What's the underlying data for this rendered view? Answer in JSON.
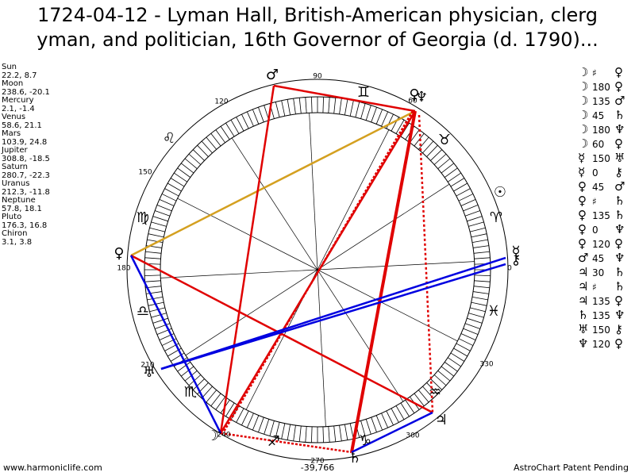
{
  "header": {
    "line1": "1724-04-12 - Lyman Hall, British-American physician, clerg",
    "line2": "yman, and politician, 16th Governor of Georgia (d. 1790)..."
  },
  "positions": [
    {
      "name": "Sun",
      "value": "22.2, 8.7"
    },
    {
      "name": "Moon",
      "value": "238.6, -20.1"
    },
    {
      "name": "Mercury",
      "value": "2.1, -1.4"
    },
    {
      "name": "Venus",
      "value": "58.6, 21.1"
    },
    {
      "name": "Mars",
      "value": "103.9, 24.8"
    },
    {
      "name": "Jupiter",
      "value": "308.8, -18.5"
    },
    {
      "name": "Saturn",
      "value": "280.7, -22.3"
    },
    {
      "name": "Uranus",
      "value": "212.3, -11.8"
    },
    {
      "name": "Neptune",
      "value": "57.8, 18.1"
    },
    {
      "name": "Pluto",
      "value": "176.3, 16.8"
    },
    {
      "name": "Chiron",
      "value": "3.1, 3.8"
    }
  ],
  "aspects": [
    [
      "☽",
      "♯",
      "♀"
    ],
    [
      "☽",
      "180",
      "♀"
    ],
    [
      "☽",
      "135",
      "♂"
    ],
    [
      "☽",
      "45",
      "♄"
    ],
    [
      "☽",
      "180",
      "♆"
    ],
    [
      "☽",
      "60",
      "♀"
    ],
    [
      "☿",
      "150",
      "♅"
    ],
    [
      "☿",
      "0",
      "⚷"
    ],
    [
      "♀",
      "45",
      "♂"
    ],
    [
      "♀",
      "♯",
      "♄"
    ],
    [
      "♀",
      "135",
      "♄"
    ],
    [
      "♀",
      "0",
      "♆"
    ],
    [
      "♀",
      "120",
      "♀"
    ],
    [
      "♂",
      "45",
      "♆"
    ],
    [
      "♃",
      "30",
      "♄"
    ],
    [
      "♃",
      "♯",
      "♄"
    ],
    [
      "♃",
      "135",
      "♀"
    ],
    [
      "♄",
      "135",
      "♆"
    ],
    [
      "♅",
      "150",
      "⚷"
    ],
    [
      "♆",
      "120",
      "♀"
    ]
  ],
  "wheel": {
    "degree_labels": [
      "0",
      "60",
      "90",
      "120",
      "150",
      "180",
      "210",
      "240",
      "270",
      "300",
      "330"
    ],
    "signs": [
      "♈",
      "♉",
      "♊",
      "♌",
      "♍",
      "♎",
      "♏",
      "♐",
      "♑",
      "♒",
      "♓"
    ],
    "planets": [
      "☉",
      "♂",
      "♀",
      "♆",
      "♀",
      "♅",
      "☽",
      "♄",
      "♃",
      "☿",
      "⚷"
    ]
  },
  "footer": {
    "site": "www.harmoniclife.com",
    "center": "-39,766",
    "notice": "AstroChart Patent Pending"
  }
}
